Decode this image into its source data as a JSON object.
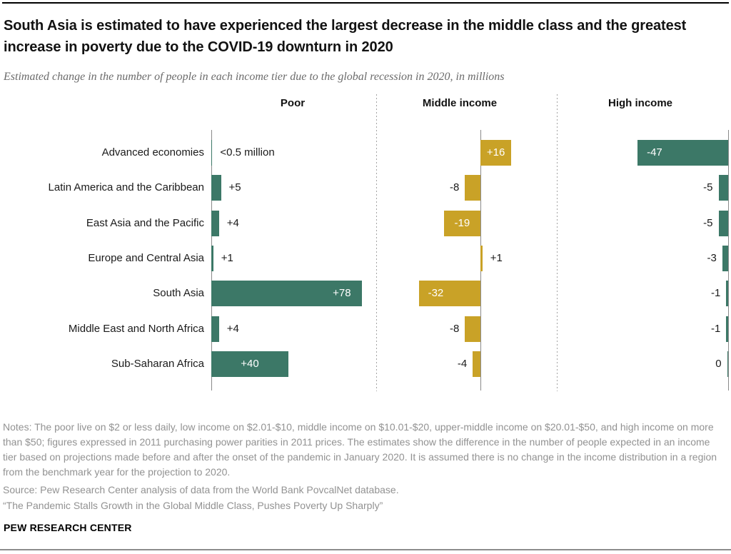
{
  "header": {
    "title": "South Asia is estimated to have experienced the largest decrease in the middle class and the greatest increase in poverty due to the COVID-19 downturn in 2020",
    "subtitle": "Estimated change in the number of people in each income tier due to the global recession in 2020, in millions"
  },
  "chart_data": {
    "type": "bar",
    "orientation": "horizontal",
    "unit": "millions of people",
    "grid": false,
    "legend": false,
    "categories": [
      "Advanced economies",
      "Latin America and the Caribbean",
      "East Asia and the Pacific",
      "Europe and Central Asia",
      "South Asia",
      "Middle East and North Africa",
      "Sub-Saharan Africa"
    ],
    "panels": [
      {
        "name": "Poor",
        "color": "#3C7867",
        "rows": [
          {
            "value": 0.3,
            "label": "<0.5 million",
            "label_pos": "out"
          },
          {
            "value": 5,
            "label": "+5",
            "label_pos": "out"
          },
          {
            "value": 4,
            "label": "+4",
            "label_pos": "out"
          },
          {
            "value": 1,
            "label": "+1",
            "label_pos": "out"
          },
          {
            "value": 78,
            "label": "+78",
            "label_pos": "in-end"
          },
          {
            "value": 4,
            "label": "+4",
            "label_pos": "out"
          },
          {
            "value": 40,
            "label": "+40",
            "label_pos": "in-center"
          }
        ]
      },
      {
        "name": "Middle income",
        "color": "#C9A227",
        "rows": [
          {
            "value": 16,
            "label": "+16",
            "label_pos": "in-center"
          },
          {
            "value": -8,
            "label": "-8",
            "label_pos": "out"
          },
          {
            "value": -19,
            "label": "-19",
            "label_pos": "in-center"
          },
          {
            "value": 1,
            "label": "+1",
            "label_pos": "out"
          },
          {
            "value": -32,
            "label": "-32",
            "label_pos": "in-end"
          },
          {
            "value": -8,
            "label": "-8",
            "label_pos": "out"
          },
          {
            "value": -4,
            "label": "-4",
            "label_pos": "out"
          }
        ]
      },
      {
        "name": "High income",
        "color": "#3C7867",
        "rows": [
          {
            "value": -47,
            "label": "-47",
            "label_pos": "in-end"
          },
          {
            "value": -5,
            "label": "-5",
            "label_pos": "out"
          },
          {
            "value": -5,
            "label": "-5",
            "label_pos": "out"
          },
          {
            "value": -3,
            "label": "-3",
            "label_pos": "out"
          },
          {
            "value": -1,
            "label": "-1",
            "label_pos": "out"
          },
          {
            "value": -1,
            "label": "-1",
            "label_pos": "out"
          },
          {
            "value": 0,
            "label": "0",
            "label_pos": "out"
          }
        ]
      }
    ]
  },
  "footer": {
    "notes": "Notes: The poor live on $2 or less daily, low income on $2.01-$10, middle income on $10.01-$20, upper-middle income on $20.01-$50, and high income on more than $50; figures expressed in 2011 purchasing power parities in 2011 prices. The estimates show the difference in the number of people expected in an income tier based on projections made before and after the onset of the pandemic in January 2020. It is assumed there is no change in the income distribution in a region from the benchmark year for the projection to 2020.",
    "source": "Source: Pew Research Center analysis of data from the World Bank PovcalNet database.",
    "report": "“The Pandemic Stalls Growth in the Global Middle Class, Pushes Poverty Up Sharply”",
    "brand": "PEW RESEARCH CENTER"
  }
}
